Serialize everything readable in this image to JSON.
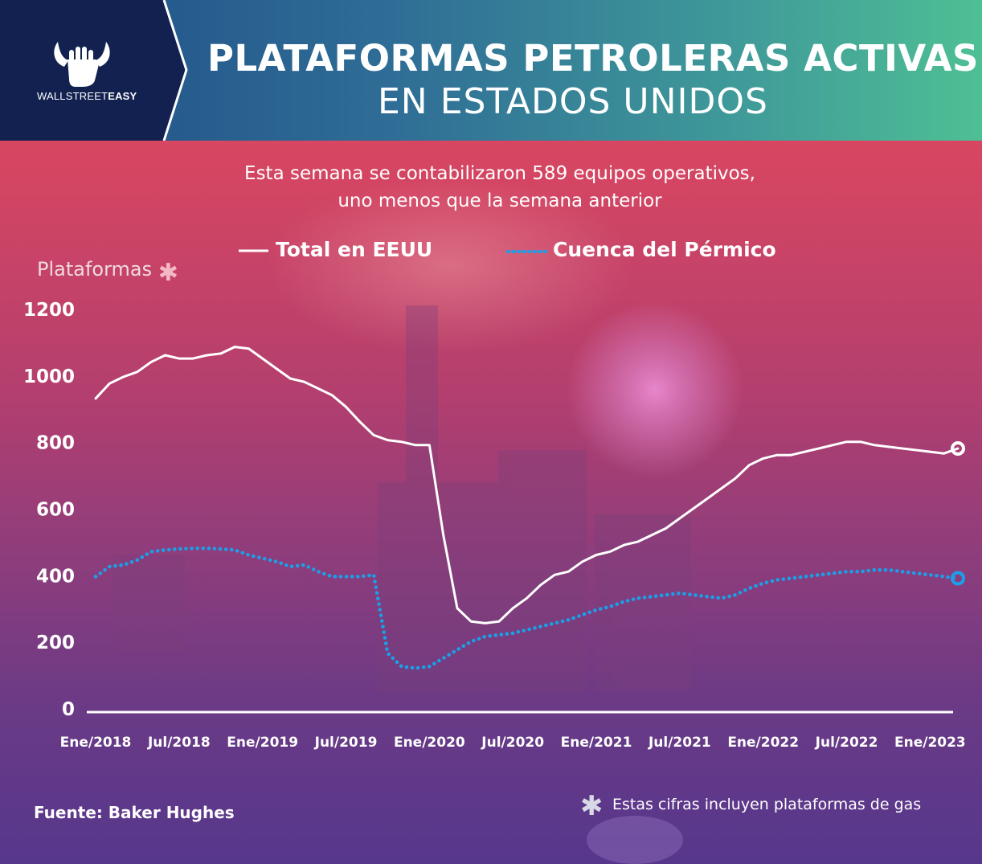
{
  "brand": {
    "name_light": "WALLSTREET",
    "name_bold": "EASY"
  },
  "header": {
    "title_line1": "PLATAFORMAS PETROLERAS ACTIVAS",
    "title_line2": "EN ESTADOS UNIDOS"
  },
  "subtitle": {
    "line1": "Esta semana se contabilizaron 589 equipos operativos,",
    "line2": "uno menos que la semana anterior"
  },
  "footer": {
    "source": "Fuente: Baker Hughes",
    "note": "Estas cifras incluyen plataformas de gas"
  },
  "colors": {
    "total": "#ffffff",
    "permian": "#1aa0e8",
    "header_left": "#132150",
    "header_right": "#4fbf94"
  },
  "chart_data": {
    "type": "line",
    "ylabel": "Plataformas",
    "ylim": [
      0,
      1200
    ],
    "yticks": [
      0,
      200,
      400,
      600,
      800,
      1000,
      1200
    ],
    "x_range": [
      "2018-01",
      "2023-03"
    ],
    "xticks": [
      "Ene/2018",
      "Jul/2018",
      "Ene/2019",
      "Jul/2019",
      "Ene/2020",
      "Jul/2020",
      "Ene/2021",
      "Jul/2021",
      "Ene/2022",
      "Jul/2022",
      "Ene/2023"
    ],
    "series": [
      {
        "name": "Total en EEUU",
        "style": "solid",
        "x": [
          "2018-01",
          "2018-02",
          "2018-03",
          "2018-04",
          "2018-05",
          "2018-06",
          "2018-07",
          "2018-08",
          "2018-09",
          "2018-10",
          "2018-11",
          "2018-12",
          "2019-01",
          "2019-02",
          "2019-03",
          "2019-04",
          "2019-05",
          "2019-06",
          "2019-07",
          "2019-08",
          "2019-09",
          "2019-10",
          "2019-11",
          "2019-12",
          "2020-01",
          "2020-02",
          "2020-03",
          "2020-04",
          "2020-05",
          "2020-06",
          "2020-07",
          "2020-08",
          "2020-09",
          "2020-10",
          "2020-11",
          "2020-12",
          "2021-01",
          "2021-02",
          "2021-03",
          "2021-04",
          "2021-05",
          "2021-06",
          "2021-07",
          "2021-08",
          "2021-09",
          "2021-10",
          "2021-11",
          "2021-12",
          "2022-01",
          "2022-02",
          "2022-03",
          "2022-04",
          "2022-05",
          "2022-06",
          "2022-07",
          "2022-08",
          "2022-09",
          "2022-10",
          "2022-11",
          "2022-12",
          "2023-01",
          "2023-02",
          "2023-03"
        ],
        "values": [
          930,
          975,
          995,
          1010,
          1040,
          1060,
          1050,
          1050,
          1060,
          1065,
          1085,
          1080,
          1050,
          1020,
          990,
          980,
          960,
          940,
          905,
          860,
          820,
          805,
          800,
          790,
          790,
          520,
          300,
          260,
          255,
          260,
          300,
          330,
          370,
          400,
          410,
          440,
          460,
          470,
          490,
          500,
          520,
          540,
          570,
          600,
          630,
          660,
          690,
          730,
          750,
          760,
          760,
          770,
          780,
          790,
          800,
          800,
          790,
          785,
          780,
          775,
          770,
          765,
          780
        ]
      },
      {
        "name": "Cuenca del Pérmico",
        "style": "dotted",
        "x": [
          "2018-01",
          "2018-02",
          "2018-03",
          "2018-04",
          "2018-05",
          "2018-06",
          "2018-07",
          "2018-08",
          "2018-09",
          "2018-10",
          "2018-11",
          "2018-12",
          "2019-01",
          "2019-02",
          "2019-03",
          "2019-04",
          "2019-05",
          "2019-06",
          "2019-07",
          "2019-08",
          "2019-09",
          "2019-10",
          "2019-11",
          "2019-12",
          "2020-01",
          "2020-02",
          "2020-03",
          "2020-04",
          "2020-05",
          "2020-06",
          "2020-07",
          "2020-08",
          "2020-09",
          "2020-10",
          "2020-11",
          "2020-12",
          "2021-01",
          "2021-02",
          "2021-03",
          "2021-04",
          "2021-05",
          "2021-06",
          "2021-07",
          "2021-08",
          "2021-09",
          "2021-10",
          "2021-11",
          "2021-12",
          "2022-01",
          "2022-02",
          "2022-03",
          "2022-04",
          "2022-05",
          "2022-06",
          "2022-07",
          "2022-08",
          "2022-09",
          "2022-10",
          "2022-11",
          "2022-12",
          "2023-01",
          "2023-02",
          "2023-03"
        ],
        "values": [
          395,
          425,
          430,
          445,
          470,
          475,
          478,
          480,
          480,
          478,
          475,
          460,
          450,
          440,
          425,
          430,
          410,
          395,
          395,
          395,
          400,
          165,
          125,
          120,
          125,
          150,
          175,
          200,
          215,
          220,
          225,
          235,
          245,
          255,
          265,
          280,
          295,
          305,
          320,
          330,
          335,
          340,
          345,
          340,
          335,
          330,
          340,
          360,
          375,
          385,
          390,
          395,
          400,
          405,
          410,
          410,
          415,
          415,
          410,
          405,
          400,
          395,
          390
        ]
      }
    ]
  }
}
